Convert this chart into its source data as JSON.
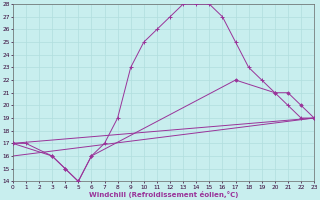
{
  "bg_color": "#c8eeee",
  "grid_color": "#b0dede",
  "line_color": "#993399",
  "xlabel": "Windchill (Refroidissement éolien,°C)",
  "xlim": [
    0,
    23
  ],
  "ylim": [
    14,
    28
  ],
  "xticks": [
    0,
    1,
    2,
    3,
    4,
    5,
    6,
    7,
    8,
    9,
    10,
    11,
    12,
    13,
    14,
    15,
    16,
    17,
    18,
    19,
    20,
    21,
    22,
    23
  ],
  "yticks": [
    14,
    15,
    16,
    17,
    18,
    19,
    20,
    21,
    22,
    23,
    24,
    25,
    26,
    27,
    28
  ],
  "line1_x": [
    0,
    1,
    3,
    4,
    5,
    6,
    7,
    8,
    9,
    10,
    11,
    12,
    13,
    14,
    15,
    16,
    17,
    18,
    19,
    20,
    21,
    22,
    23
  ],
  "line1_y": [
    17,
    17,
    16,
    15,
    14,
    16,
    17,
    19,
    23,
    25,
    26,
    27,
    28,
    28,
    28,
    27,
    25,
    23,
    22,
    21,
    20,
    19,
    19
  ],
  "line2_x": [
    0,
    3,
    4,
    5,
    6,
    17,
    20,
    21,
    22,
    23
  ],
  "line2_y": [
    17,
    16,
    15,
    14,
    16,
    22,
    21,
    21,
    20,
    19
  ],
  "line3_x": [
    0,
    23
  ],
  "line3_y": [
    17,
    19
  ],
  "line4_x": [
    0,
    23
  ],
  "line4_y": [
    16,
    19
  ]
}
